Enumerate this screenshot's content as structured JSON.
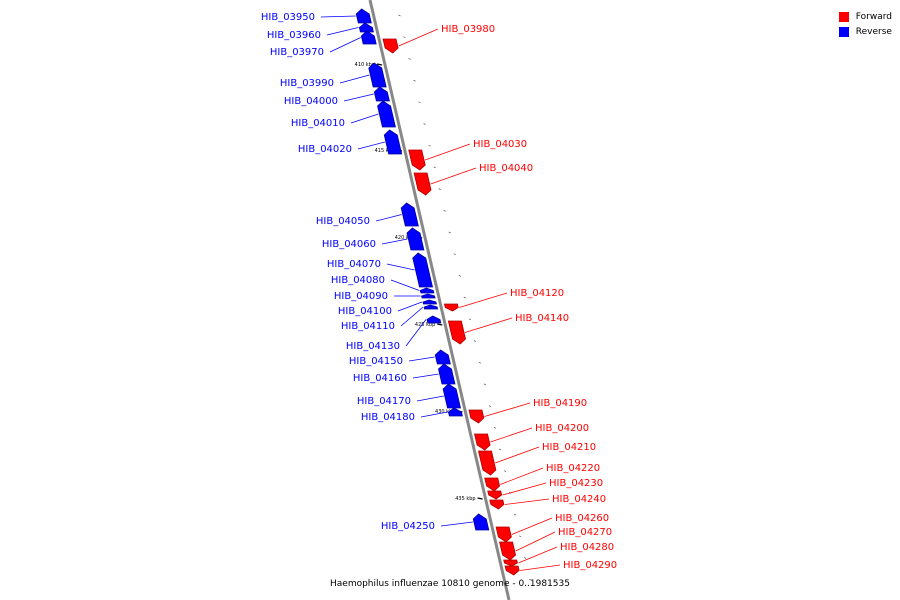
{
  "legend": [
    {
      "label": "Forward",
      "color": "#ff0000"
    },
    {
      "label": "Reverse",
      "color": "#0000ff"
    }
  ],
  "caption": "Haemophilus influenzae 10810 genome - 0..1981535",
  "colors": {
    "forward": "#ff0000",
    "reverse": "#0000ff",
    "axis": "#888888"
  },
  "ticks": [
    "410 kbp",
    "415 kbp",
    "420 kbp",
    "425 kbp",
    "430 kbp",
    "435 kbp"
  ],
  "genes": [
    {
      "name": "HIB_03950",
      "strand": "reverse"
    },
    {
      "name": "HIB_03960",
      "strand": "reverse"
    },
    {
      "name": "HIB_03970",
      "strand": "reverse"
    },
    {
      "name": "HIB_03980",
      "strand": "forward"
    },
    {
      "name": "HIB_03990",
      "strand": "reverse"
    },
    {
      "name": "HIB_04000",
      "strand": "reverse"
    },
    {
      "name": "HIB_04010",
      "strand": "reverse"
    },
    {
      "name": "HIB_04020",
      "strand": "reverse"
    },
    {
      "name": "HIB_04030",
      "strand": "forward"
    },
    {
      "name": "HIB_04040",
      "strand": "forward"
    },
    {
      "name": "HIB_04050",
      "strand": "reverse"
    },
    {
      "name": "HIB_04060",
      "strand": "reverse"
    },
    {
      "name": "HIB_04070",
      "strand": "reverse"
    },
    {
      "name": "HIB_04080",
      "strand": "reverse"
    },
    {
      "name": "HIB_04090",
      "strand": "reverse"
    },
    {
      "name": "HIB_04100",
      "strand": "reverse"
    },
    {
      "name": "HIB_04110",
      "strand": "reverse"
    },
    {
      "name": "HIB_04120",
      "strand": "forward"
    },
    {
      "name": "HIB_04130",
      "strand": "reverse"
    },
    {
      "name": "HIB_04140",
      "strand": "forward"
    },
    {
      "name": "HIB_04150",
      "strand": "reverse"
    },
    {
      "name": "HIB_04160",
      "strand": "reverse"
    },
    {
      "name": "HIB_04170",
      "strand": "reverse"
    },
    {
      "name": "HIB_04180",
      "strand": "reverse"
    },
    {
      "name": "HIB_04190",
      "strand": "forward"
    },
    {
      "name": "HIB_04200",
      "strand": "forward"
    },
    {
      "name": "HIB_04210",
      "strand": "forward"
    },
    {
      "name": "HIB_04220",
      "strand": "forward"
    },
    {
      "name": "HIB_04230",
      "strand": "forward"
    },
    {
      "name": "HIB_04240",
      "strand": "forward"
    },
    {
      "name": "HIB_04250",
      "strand": "reverse"
    },
    {
      "name": "HIB_04260",
      "strand": "forward"
    },
    {
      "name": "HIB_04270",
      "strand": "forward"
    },
    {
      "name": "HIB_04280",
      "strand": "forward"
    },
    {
      "name": "HIB_04290",
      "strand": "forward"
    }
  ]
}
